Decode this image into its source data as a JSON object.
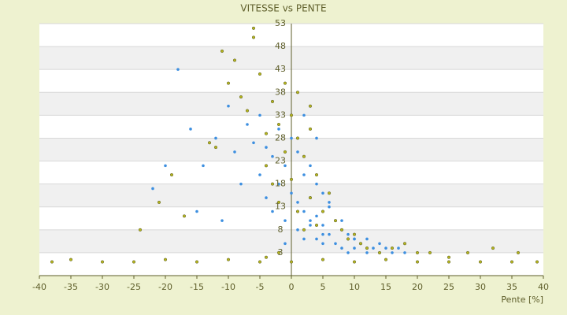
{
  "chart_data": {
    "type": "scatter",
    "title": "VITESSE vs PENTE",
    "x_label": "Pente [%]",
    "xlim": [
      -40,
      40
    ],
    "xticks": [
      -40,
      -35,
      -30,
      -25,
      -20,
      -15,
      -10,
      -5,
      0,
      5,
      10,
      15,
      20,
      25,
      30,
      35,
      40
    ],
    "ylim": [
      -2,
      53
    ],
    "yticks": [
      53,
      48,
      43,
      38,
      33,
      28,
      23,
      18,
      13,
      8,
      3
    ],
    "grid": true,
    "series": [
      {
        "color": "#3d8fe0",
        "x": [
          -18,
          -16,
          -14,
          -12,
          -10,
          -9,
          -8,
          -7,
          -6,
          -5,
          -5,
          -4,
          -4,
          -3,
          -3,
          -2,
          -2,
          -1,
          -1,
          0,
          0,
          1,
          1,
          1,
          2,
          2,
          2,
          3,
          3,
          3,
          4,
          4,
          4,
          5,
          5,
          5,
          6,
          6,
          7,
          7,
          8,
          8,
          9,
          9,
          10,
          10,
          11,
          12,
          12,
          13,
          14,
          15,
          16,
          17,
          18,
          -20,
          -22,
          -15,
          -11,
          -3,
          2,
          4,
          6,
          8,
          10,
          12,
          14,
          -1,
          3,
          5
        ],
        "y": [
          43,
          30,
          22,
          28,
          35,
          25,
          18,
          31,
          27,
          33,
          20,
          15,
          26,
          12,
          24,
          30,
          18,
          22,
          10,
          28,
          16,
          25,
          14,
          8,
          20,
          12,
          6,
          22,
          15,
          9,
          18,
          11,
          6,
          16,
          9,
          5,
          13,
          7,
          10,
          5,
          8,
          4,
          7,
          3,
          6,
          4,
          5,
          6,
          3,
          4,
          5,
          4,
          3,
          4,
          3,
          22,
          17,
          12,
          10,
          36,
          33,
          28,
          14,
          10,
          6,
          4,
          3,
          5,
          10,
          7
        ]
      },
      {
        "color": "#b5b51e",
        "x": [
          -38,
          -35,
          -30,
          -25,
          -20,
          -15,
          -10,
          -5,
          0,
          5,
          10,
          15,
          20,
          25,
          30,
          35,
          39,
          -24,
          -21,
          -19,
          -17,
          -13,
          -11,
          -10,
          -9,
          -8,
          -7,
          -6,
          -5,
          -4,
          -4,
          -3,
          -3,
          -2,
          -2,
          -1,
          -1,
          0,
          0,
          1,
          1,
          2,
          2,
          3,
          3,
          4,
          4,
          5,
          6,
          7,
          8,
          9,
          10,
          11,
          12,
          14,
          16,
          18,
          20,
          22,
          25,
          28,
          32,
          36,
          -2,
          -4,
          -6,
          1,
          3,
          -12
        ],
        "y": [
          1,
          1.5,
          1,
          1,
          1.5,
          1,
          1.5,
          1,
          1,
          1.5,
          1,
          1.5,
          1,
          1,
          1,
          1,
          1,
          8,
          14,
          20,
          11,
          27,
          47,
          40,
          45,
          37,
          34,
          50,
          42,
          29,
          22,
          36,
          18,
          31,
          14,
          25,
          40,
          19,
          33,
          12,
          28,
          8,
          24,
          15,
          35,
          9,
          20,
          12,
          16,
          10,
          8,
          6,
          7,
          5,
          4,
          3,
          4,
          5,
          3,
          3,
          2,
          3,
          4,
          3,
          3,
          2,
          52,
          38,
          30,
          26
        ]
      }
    ]
  }
}
